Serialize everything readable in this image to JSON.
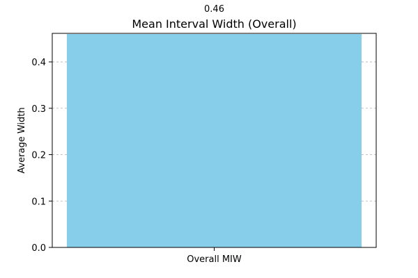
{
  "chart_data": {
    "type": "bar",
    "title": "Mean Interval Width (Overall)",
    "xlabel": "",
    "ylabel": "Average Width",
    "categories": [
      "Overall MIW"
    ],
    "values": [
      0.46
    ],
    "data_labels": [
      "0.46"
    ],
    "ylim": [
      0,
      0.4615
    ],
    "yticks": [
      0.0,
      0.1,
      0.2,
      0.3,
      0.4
    ],
    "ytick_labels": [
      "0.0",
      "0.1",
      "0.2",
      "0.3",
      "0.4"
    ],
    "grid": "y-dashed",
    "colors": {
      "bar": "#87CEEB",
      "grid": "#b0b0b0",
      "axis": "#000000"
    }
  }
}
